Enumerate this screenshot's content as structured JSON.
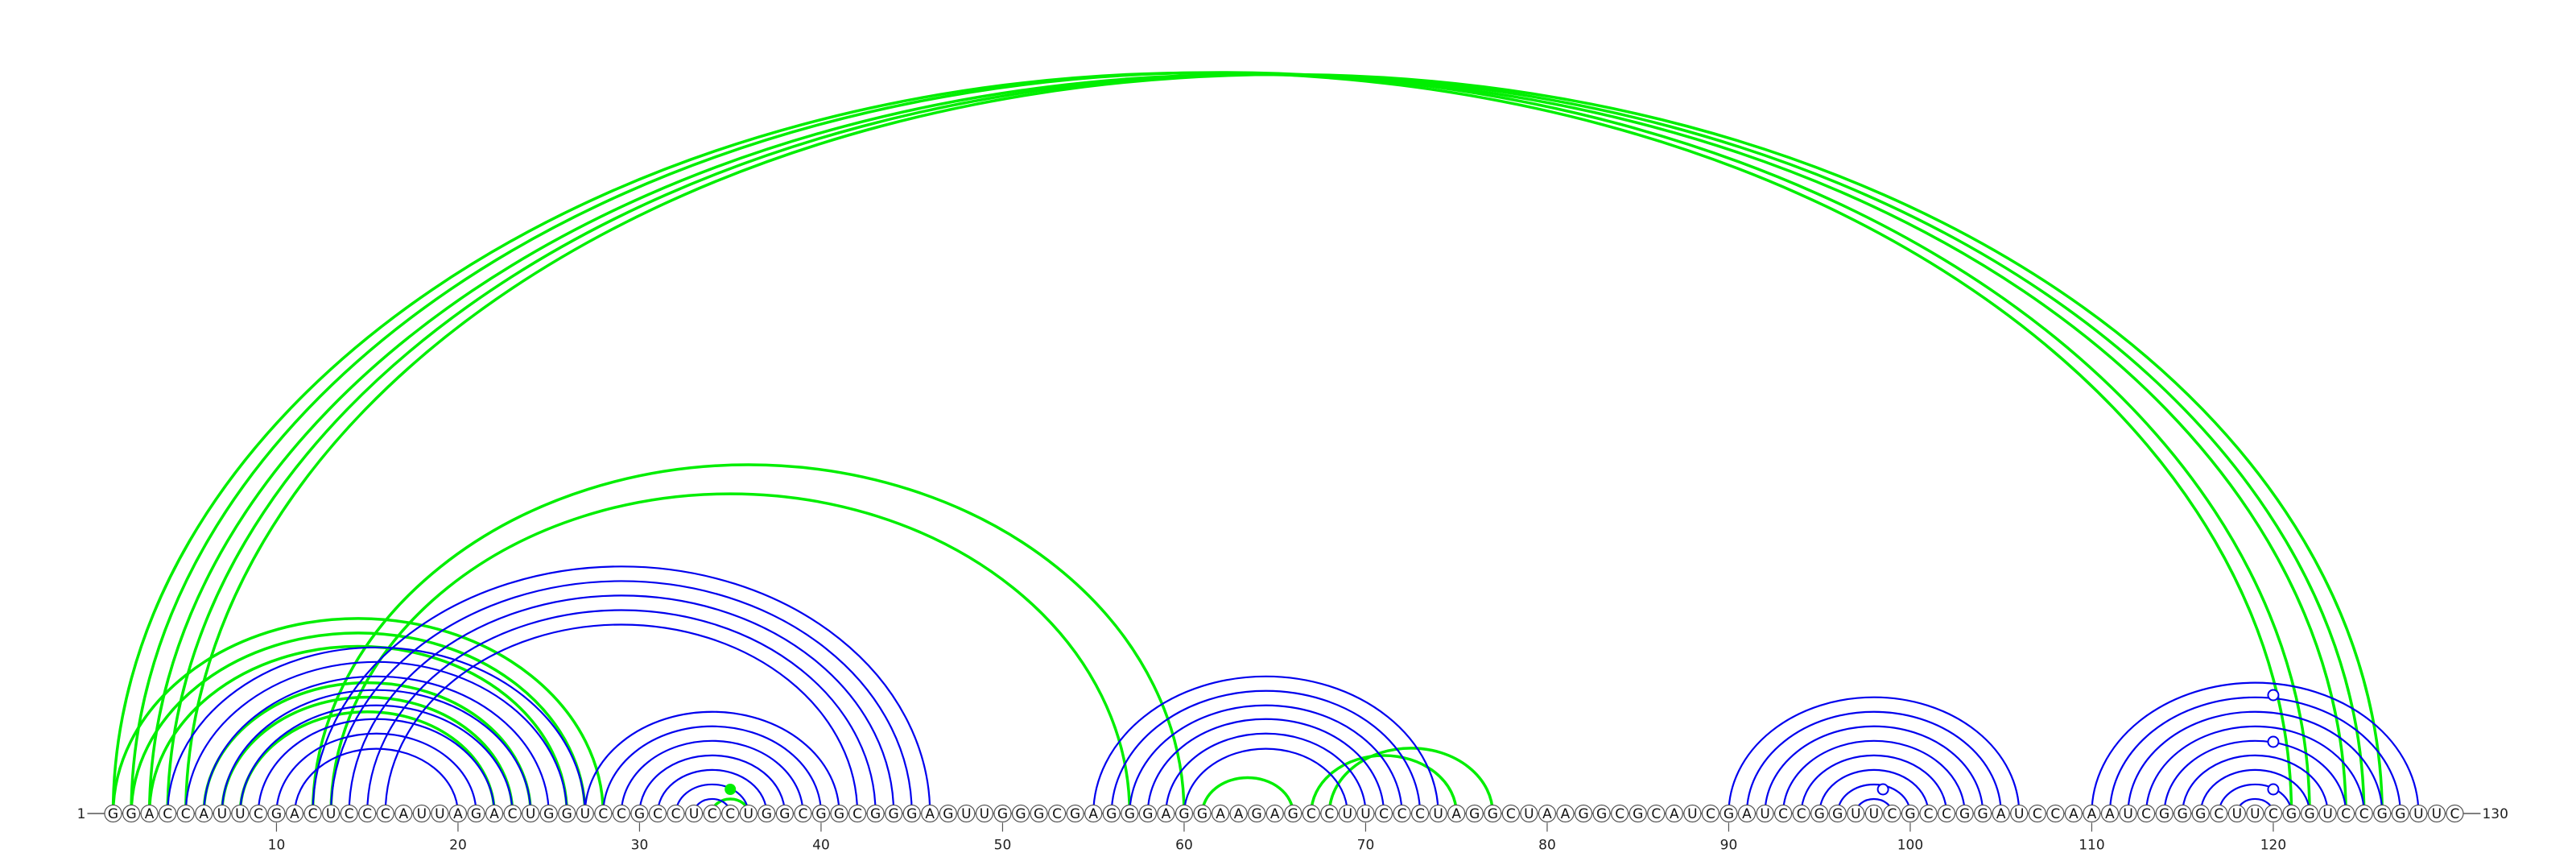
{
  "sequence": "GGACCAUUCGACUCCCAUUAGACUGGUCCGCCUCCUGGCGGCGGGAGUUGGGCGAGGGAGGAAGAGCCUUCCCUAGGCUAAGGCGCAUCGAUCCGGUUCGCCGGAUCCAAAUCGGGCUUCGGUCCGGUUC",
  "start_label": "1",
  "end_label": "130",
  "ticks": [
    10,
    20,
    30,
    40,
    50,
    60,
    70,
    80,
    90,
    100,
    110,
    120
  ],
  "colors": {
    "canonical": "#0000ee",
    "noncanonical": "#00ee00",
    "backbone": "#555555"
  },
  "green_pairs": [
    [
      1,
      121
    ],
    [
      2,
      122
    ],
    [
      3,
      124
    ],
    [
      4,
      125
    ],
    [
      5,
      126
    ],
    [
      1,
      28
    ],
    [
      2,
      27
    ],
    [
      3,
      26
    ],
    [
      6,
      24
    ],
    [
      7,
      23
    ],
    [
      8,
      22
    ],
    [
      12,
      60
    ],
    [
      13,
      57
    ],
    [
      34,
      36
    ],
    [
      61,
      66
    ],
    [
      67,
      75
    ],
    [
      68,
      77
    ]
  ],
  "blue_pairs": [
    [
      4,
      27
    ],
    [
      5,
      26
    ],
    [
      6,
      25
    ],
    [
      7,
      24
    ],
    [
      8,
      23
    ],
    [
      9,
      22
    ],
    [
      10,
      21
    ],
    [
      11,
      20
    ],
    [
      12,
      46
    ],
    [
      13,
      45
    ],
    [
      14,
      44
    ],
    [
      15,
      43
    ],
    [
      16,
      42
    ],
    [
      27,
      41
    ],
    [
      28,
      40
    ],
    [
      29,
      39
    ],
    [
      30,
      38
    ],
    [
      31,
      37
    ],
    [
      32,
      36
    ],
    [
      33,
      35
    ],
    [
      55,
      74
    ],
    [
      56,
      73
    ],
    [
      57,
      72
    ],
    [
      58,
      71
    ],
    [
      59,
      70
    ],
    [
      60,
      69
    ],
    [
      90,
      106
    ],
    [
      91,
      105
    ],
    [
      92,
      104
    ],
    [
      93,
      103
    ],
    [
      94,
      102
    ],
    [
      95,
      101
    ],
    [
      96,
      100
    ],
    [
      97,
      99
    ],
    [
      110,
      128
    ],
    [
      111,
      127
    ],
    [
      112,
      126
    ],
    [
      113,
      125
    ],
    [
      114,
      124
    ],
    [
      115,
      123
    ],
    [
      116,
      122
    ],
    [
      117,
      121
    ],
    [
      118,
      120
    ]
  ],
  "green_markers": [
    35
  ],
  "open_markers": [
    98,
    119,
    119.5,
    120
  ]
}
